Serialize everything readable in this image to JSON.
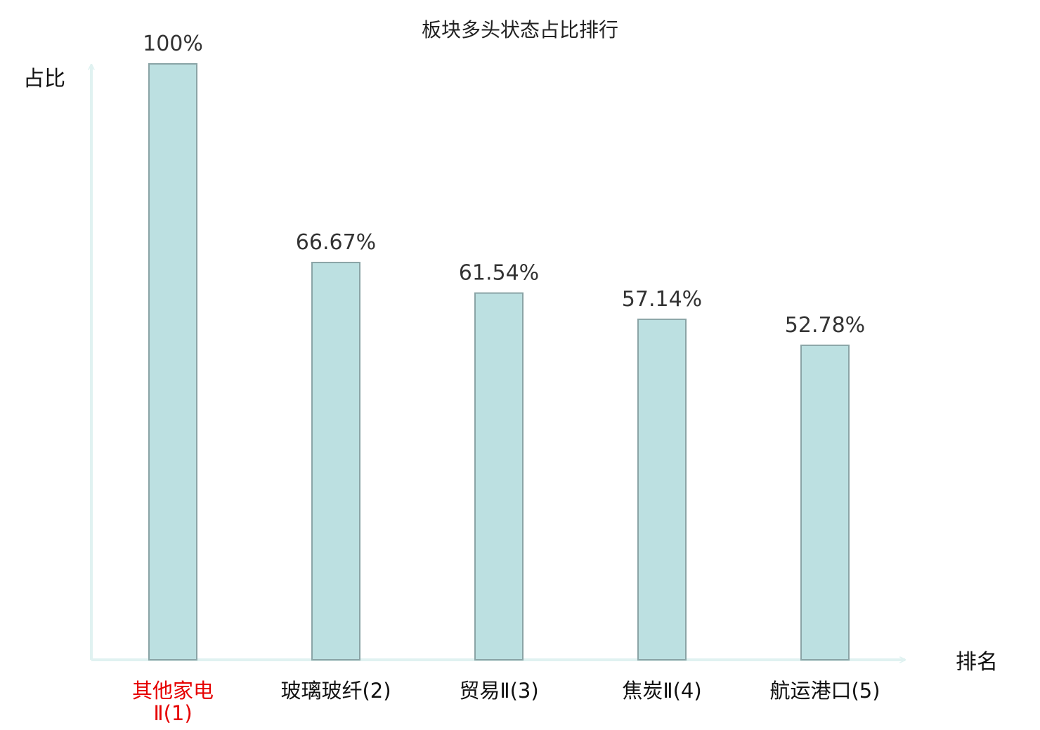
{
  "colors": {
    "bar_fill": "#bce0e1",
    "bar_stroke": "#8aa4a6",
    "axis": "#e0f2f1",
    "highlight_label": "#e60000",
    "normal_label": "#111111"
  },
  "chart_data": {
    "type": "bar",
    "title": "板块多头状态占比排行",
    "xlabel": "排名",
    "ylabel": "占比",
    "ylim": [
      0,
      100
    ],
    "grid": false,
    "categories": [
      "其他家电Ⅱ(1)",
      "玻璃玻纤(2)",
      "贸易Ⅱ(3)",
      "焦炭Ⅱ(4)",
      "航运港口(5)"
    ],
    "category_lines": [
      [
        "其他家电",
        "Ⅱ(1)"
      ],
      [
        "玻璃玻纤(2)"
      ],
      [
        "贸易Ⅱ(3)"
      ],
      [
        "焦炭Ⅱ(4)"
      ],
      [
        "航运港口(5)"
      ]
    ],
    "highlighted_category_index": 0,
    "values": [
      100,
      66.67,
      61.54,
      57.14,
      52.78
    ],
    "data_labels": [
      "100%",
      "66.67%",
      "61.54%",
      "57.14%",
      "52.78%"
    ]
  }
}
